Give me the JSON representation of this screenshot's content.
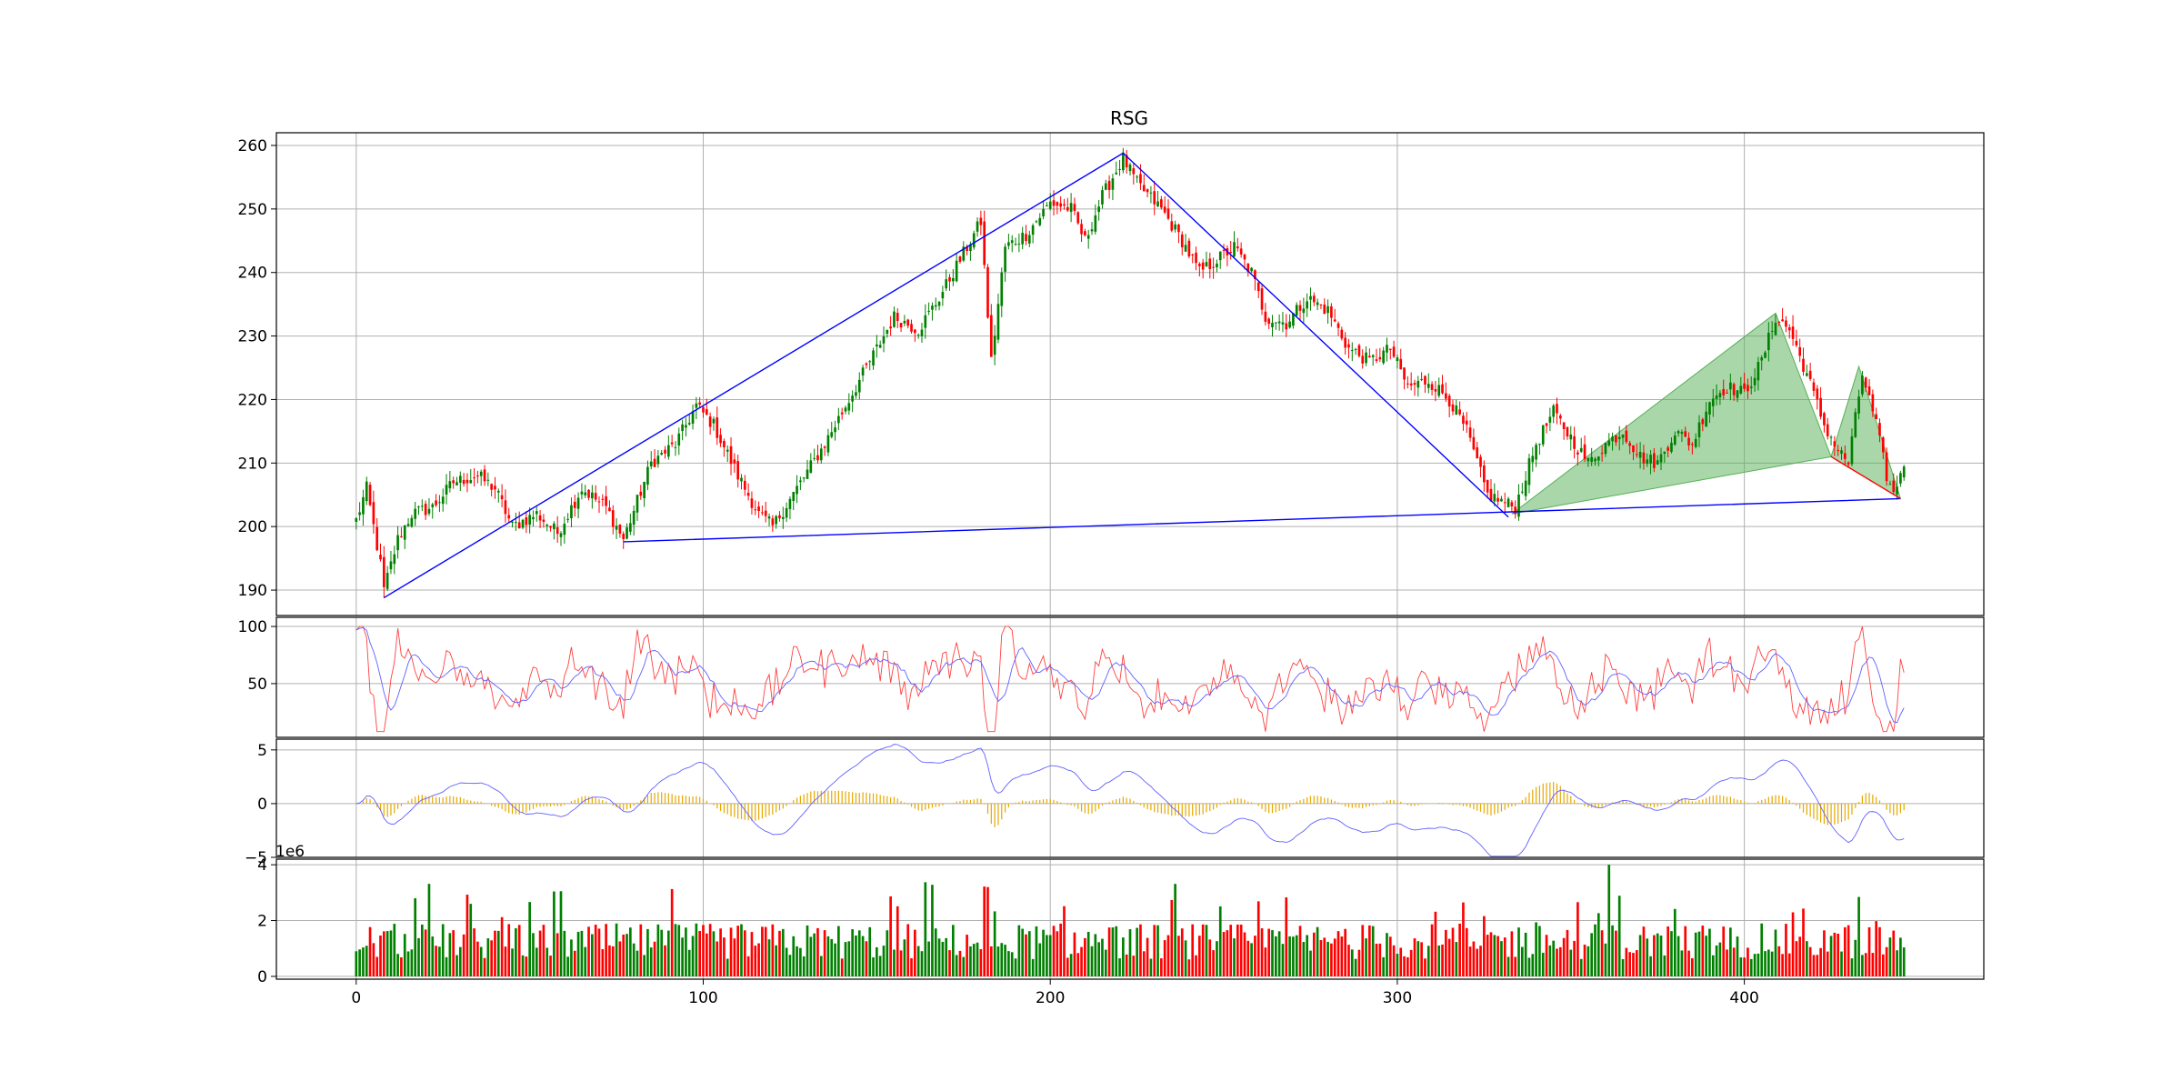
{
  "chart_data": {
    "type": "candlestick",
    "title": "RSG",
    "x_ticks": [
      0,
      100,
      200,
      300,
      400
    ],
    "xlim": [
      -23,
      469
    ],
    "bars": 447,
    "colors": {
      "up": "#008000",
      "down": "#ff0000",
      "pattern_line": "#0000ff",
      "fill": "#55b055",
      "rsi_fast": "#ff4040",
      "rsi_slow": "#6060ff",
      "macd_hist": "#e6a800",
      "macd_line": "#6060ff",
      "grid": "#b0b0b0"
    },
    "panels": {
      "price": {
        "ylim": [
          186,
          262
        ],
        "y_ticks": [
          "190",
          "200",
          "210",
          "220",
          "230",
          "240",
          "250",
          "260"
        ],
        "anchors": [
          [
            0,
            201
          ],
          [
            3,
            206
          ],
          [
            7,
            194
          ],
          [
            8,
            190
          ],
          [
            12,
            198
          ],
          [
            16,
            202
          ],
          [
            22,
            203
          ],
          [
            28,
            207
          ],
          [
            35,
            208
          ],
          [
            40,
            206
          ],
          [
            45,
            200
          ],
          [
            52,
            202
          ],
          [
            58,
            199
          ],
          [
            65,
            206
          ],
          [
            72,
            203
          ],
          [
            77,
            198
          ],
          [
            85,
            210
          ],
          [
            92,
            213
          ],
          [
            98,
            219
          ],
          [
            103,
            216
          ],
          [
            110,
            208
          ],
          [
            116,
            202
          ],
          [
            120,
            200
          ],
          [
            127,
            206
          ],
          [
            135,
            213
          ],
          [
            142,
            220
          ],
          [
            148,
            226
          ],
          [
            155,
            233
          ],
          [
            162,
            231
          ],
          [
            168,
            236
          ],
          [
            175,
            243
          ],
          [
            180,
            248
          ],
          [
            183,
            226
          ],
          [
            187,
            244
          ],
          [
            193,
            246
          ],
          [
            200,
            251
          ],
          [
            206,
            250
          ],
          [
            210,
            245
          ],
          [
            215,
            252
          ],
          [
            221,
            258
          ],
          [
            225,
            254
          ],
          [
            232,
            250
          ],
          [
            238,
            245
          ],
          [
            243,
            240
          ],
          [
            248,
            242
          ],
          [
            253,
            244
          ],
          [
            258,
            240
          ],
          [
            262,
            233
          ],
          [
            268,
            232
          ],
          [
            274,
            236
          ],
          [
            280,
            234
          ],
          [
            286,
            228
          ],
          [
            292,
            226
          ],
          [
            298,
            228
          ],
          [
            303,
            222
          ],
          [
            309,
            223
          ],
          [
            315,
            220
          ],
          [
            320,
            215
          ],
          [
            326,
            205
          ],
          [
            330,
            204
          ],
          [
            334,
            203
          ],
          [
            340,
            213
          ],
          [
            345,
            218
          ],
          [
            350,
            214
          ],
          [
            355,
            210
          ],
          [
            360,
            213
          ],
          [
            365,
            215
          ],
          [
            370,
            211
          ],
          [
            375,
            210
          ],
          [
            380,
            215
          ],
          [
            385,
            213
          ],
          [
            390,
            220
          ],
          [
            395,
            222
          ],
          [
            400,
            221
          ],
          [
            405,
            226
          ],
          [
            409,
            233
          ],
          [
            413,
            231
          ],
          [
            418,
            224
          ],
          [
            423,
            216
          ],
          [
            427,
            212
          ],
          [
            430,
            210
          ],
          [
            434,
            224
          ],
          [
            438,
            216
          ],
          [
            441,
            208
          ],
          [
            443,
            205
          ],
          [
            447,
            212
          ]
        ],
        "pattern_lines": [
          [
            [
              8,
              188.8
            ],
            [
              221,
              258.8
            ],
            [
              332,
              201.5
            ]
          ],
          [
            [
              77,
              197.6
            ],
            [
              332,
              202.3
            ],
            [
              445,
              204.4
            ]
          ]
        ],
        "harmonic_triangles": [
          [
            [
              333,
              202
            ],
            [
              409,
              233.6
            ],
            [
              425,
              211
            ]
          ],
          [
            [
              425,
              211
            ],
            [
              433,
              225.2
            ],
            [
              445,
              204.4
            ]
          ]
        ],
        "harmonic_red_line": [
          [
            425,
            211
          ],
          [
            445,
            204.4
          ]
        ]
      },
      "rsi": {
        "ylim": [
          3,
          108
        ],
        "y_ticks": [
          "50",
          "100"
        ]
      },
      "macd": {
        "ylim": [
          -5,
          6
        ],
        "y_ticks": [
          "−5",
          "0",
          "5"
        ]
      },
      "volume": {
        "ylim": [
          -0.1,
          4.2
        ],
        "y_ticks": [
          "0",
          "2",
          "4"
        ],
        "multiplier": "1e6"
      }
    }
  }
}
